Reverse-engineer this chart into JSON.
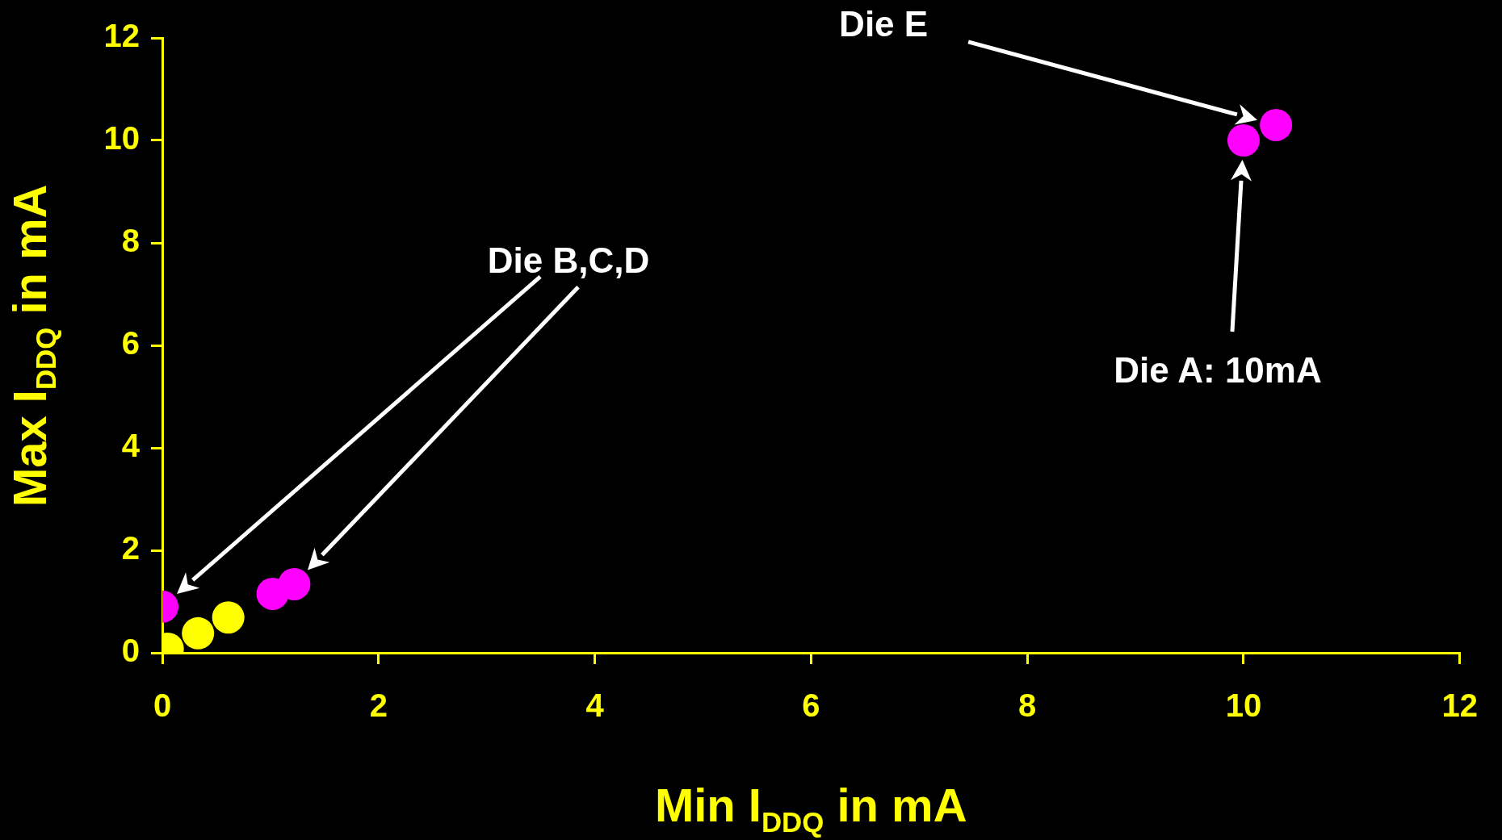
{
  "chart_data": {
    "type": "scatter",
    "xlabel": "Min I$_{DDQ}$ in mA",
    "ylabel": "Max I$_{DDQ}$ in mA",
    "xlim": [
      0,
      12
    ],
    "xticks": [
      0,
      2,
      4,
      6,
      8,
      10,
      12
    ],
    "ylim": [
      0,
      12
    ],
    "yticks": [
      0,
      2,
      4,
      6,
      8,
      10,
      12
    ],
    "grid": false,
    "legend": false,
    "marker": "circle",
    "series": [
      {
        "color": "#ffff00",
        "x": [
          0.05,
          0.33,
          0.61
        ],
        "values": [
          0.08,
          0.38,
          0.69
        ]
      },
      {
        "color": "#ff00ff",
        "x": [
          0,
          1.02,
          1.22,
          10,
          10.3
        ],
        "values": [
          0.9,
          1.15,
          1.34,
          10,
          10.3
        ]
      }
    ],
    "annotations": [
      "Die E",
      "Die B,C,D",
      "Die A: 10mA"
    ]
  }
}
